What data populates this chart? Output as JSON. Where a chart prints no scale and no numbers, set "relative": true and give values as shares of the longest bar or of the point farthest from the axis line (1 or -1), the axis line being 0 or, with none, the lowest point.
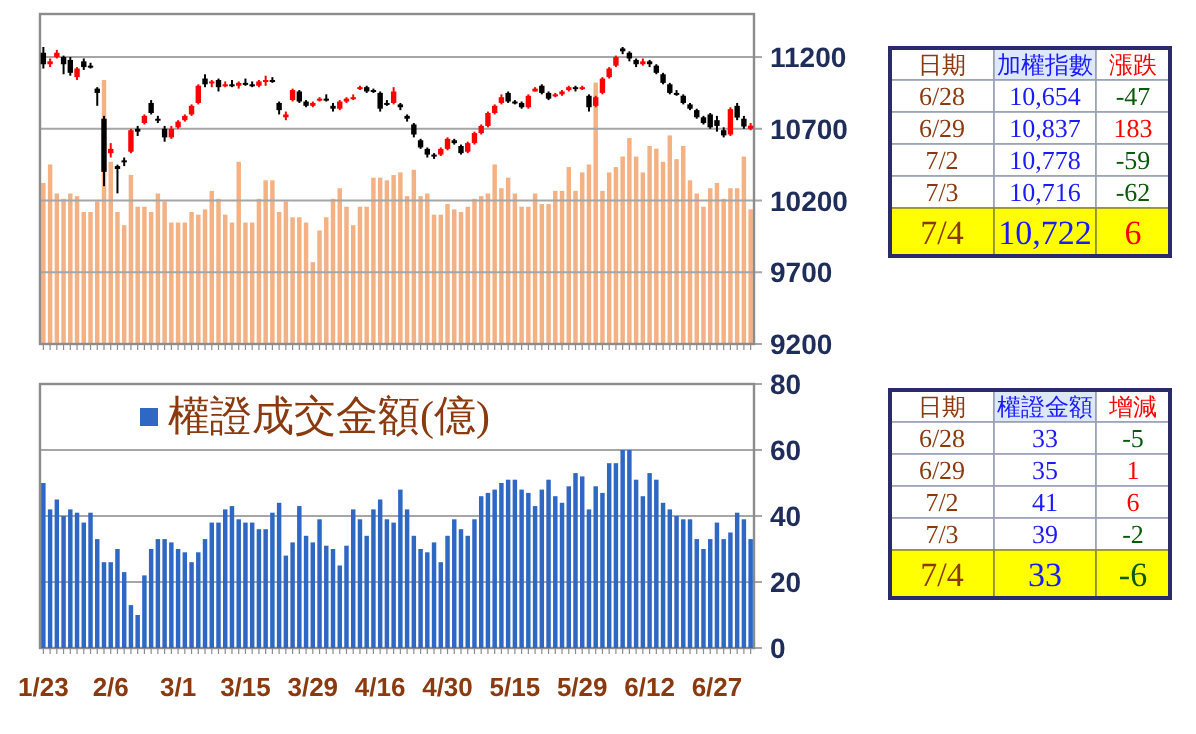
{
  "chart_data": [
    {
      "type": "candlestick",
      "tick_labels": "y",
      "grid": "y",
      "ylim": [
        9200,
        11500
      ],
      "yticks": [
        9200,
        9700,
        10200,
        10700,
        11200
      ],
      "categories": [
        null,
        null,
        null,
        null,
        null,
        null,
        null,
        null,
        null,
        null,
        null,
        null,
        null,
        null,
        null,
        null,
        null,
        null,
        null,
        null,
        null,
        null,
        null,
        null,
        null,
        null,
        null,
        null,
        null,
        null,
        null,
        null,
        null,
        null,
        null,
        null,
        null,
        null,
        null,
        null,
        null,
        null,
        null,
        null,
        null,
        null,
        null,
        null,
        null,
        null,
        null,
        null,
        null,
        null,
        null,
        null,
        null,
        null,
        null,
        null,
        null,
        null,
        null,
        null,
        null,
        null,
        null,
        null,
        null,
        null,
        null,
        null,
        null,
        null,
        null,
        null,
        null,
        null,
        null,
        null,
        null,
        null,
        null,
        null,
        null,
        null,
        null,
        null,
        null,
        null,
        null,
        null,
        null,
        null,
        null,
        null,
        null,
        null,
        null,
        null,
        null,
        null,
        null,
        null,
        null,
        null
      ],
      "ohlc": [
        [
          11230,
          11270,
          11120,
          11150
        ],
        [
          11150,
          11190,
          11130,
          11170
        ],
        [
          11200,
          11250,
          11190,
          11230
        ],
        [
          11200,
          11210,
          11080,
          11150
        ],
        [
          11180,
          11200,
          11070,
          11090
        ],
        [
          11060,
          11130,
          11040,
          11120
        ],
        [
          11170,
          11190,
          11110,
          11130
        ],
        [
          11140,
          11160,
          11120,
          11130
        ],
        [
          10980,
          10990,
          10860,
          10950
        ],
        [
          10770,
          10790,
          10300,
          10400
        ],
        [
          10530,
          10600,
          10500,
          10560
        ],
        [
          10440,
          10450,
          10250,
          10420
        ],
        [
          10480,
          10500,
          10440,
          10470
        ],
        [
          10540,
          10700,
          10530,
          10690
        ],
        [
          10700,
          10720,
          10650,
          10680
        ],
        [
          10740,
          10800,
          10730,
          10790
        ],
        [
          10880,
          10900,
          10800,
          10810
        ],
        [
          10770,
          10790,
          10740,
          10760
        ],
        [
          10700,
          10720,
          10610,
          10640
        ],
        [
          10640,
          10720,
          10630,
          10700
        ],
        [
          10710,
          10760,
          10700,
          10750
        ],
        [
          10760,
          10800,
          10750,
          10790
        ],
        [
          10800,
          10870,
          10790,
          10860
        ],
        [
          10880,
          11010,
          10870,
          11000
        ],
        [
          11050,
          11080,
          10990,
          11010
        ],
        [
          11020,
          11040,
          10990,
          11030
        ],
        [
          11040,
          11050,
          10960,
          10990
        ],
        [
          11000,
          11030,
          10990,
          11010
        ],
        [
          11010,
          11040,
          10990,
          11000
        ],
        [
          11000,
          11030,
          10980,
          11020
        ],
        [
          11020,
          11050,
          11000,
          11010
        ],
        [
          11010,
          11030,
          10990,
          11000
        ],
        [
          11000,
          11040,
          10990,
          11030
        ],
        [
          11030,
          11070,
          11000,
          11040
        ],
        [
          11040,
          11060,
          11020,
          11030
        ],
        [
          10880,
          10890,
          10800,
          10830
        ],
        [
          10780,
          10820,
          10760,
          10800
        ],
        [
          10900,
          10980,
          10890,
          10970
        ],
        [
          10960,
          10970,
          10880,
          10890
        ],
        [
          10890,
          10900,
          10850,
          10860
        ],
        [
          10860,
          10890,
          10850,
          10880
        ],
        [
          10900,
          10920,
          10890,
          10910
        ],
        [
          10910,
          10940,
          10890,
          10900
        ],
        [
          10860,
          10880,
          10820,
          10840
        ],
        [
          10840,
          10900,
          10830,
          10890
        ],
        [
          10890,
          10920,
          10880,
          10910
        ],
        [
          10910,
          10940,
          10900,
          10920
        ],
        [
          10980,
          11000,
          10970,
          10990
        ],
        [
          10990,
          11000,
          10950,
          10960
        ],
        [
          10970,
          10980,
          10950,
          10960
        ],
        [
          10950,
          10960,
          10820,
          10840
        ],
        [
          10880,
          10900,
          10860,
          10870
        ],
        [
          10880,
          10990,
          10870,
          10960
        ],
        [
          10870,
          10880,
          10830,
          10850
        ],
        [
          10790,
          10800,
          10750,
          10770
        ],
        [
          10730,
          10740,
          10640,
          10660
        ],
        [
          10620,
          10630,
          10560,
          10570
        ],
        [
          10560,
          10570,
          10500,
          10520
        ],
        [
          10520,
          10530,
          10490,
          10510
        ],
        [
          10520,
          10570,
          10510,
          10560
        ],
        [
          10560,
          10640,
          10550,
          10630
        ],
        [
          10620,
          10630,
          10590,
          10600
        ],
        [
          10580,
          10590,
          10520,
          10530
        ],
        [
          10540,
          10610,
          10530,
          10600
        ],
        [
          10600,
          10680,
          10590,
          10670
        ],
        [
          10670,
          10730,
          10660,
          10720
        ],
        [
          10720,
          10820,
          10710,
          10810
        ],
        [
          10810,
          10870,
          10800,
          10860
        ],
        [
          10880,
          10940,
          10870,
          10920
        ],
        [
          10950,
          10960,
          10880,
          10890
        ],
        [
          10890,
          10900,
          10870,
          10880
        ],
        [
          10880,
          10890,
          10840,
          10850
        ],
        [
          10850,
          10940,
          10840,
          10930
        ],
        [
          10960,
          10990,
          10960,
          10980
        ],
        [
          11000,
          11010,
          10940,
          10950
        ],
        [
          10950,
          10960,
          10900,
          10910
        ],
        [
          10930,
          10950,
          10920,
          10940
        ],
        [
          10940,
          10970,
          10930,
          10960
        ],
        [
          10970,
          11000,
          10960,
          10990
        ],
        [
          10990,
          11000,
          10960,
          10980
        ],
        [
          10980,
          11000,
          10970,
          10990
        ],
        [
          10930,
          10940,
          10820,
          10850
        ],
        [
          10860,
          10930,
          10850,
          10920
        ],
        [
          10950,
          11060,
          10940,
          11050
        ],
        [
          11060,
          11130,
          11050,
          11120
        ],
        [
          11140,
          11210,
          11130,
          11200
        ],
        [
          11260,
          11270,
          11220,
          11240
        ],
        [
          11230,
          11240,
          11170,
          11190
        ],
        [
          11180,
          11190,
          11130,
          11150
        ],
        [
          11150,
          11190,
          11140,
          11170
        ],
        [
          11170,
          11180,
          11130,
          11150
        ],
        [
          11140,
          11150,
          11080,
          11090
        ],
        [
          11080,
          11090,
          11010,
          11020
        ],
        [
          11010,
          11020,
          10940,
          10950
        ],
        [
          10950,
          10970,
          10930,
          10940
        ],
        [
          10930,
          10940,
          10870,
          10880
        ],
        [
          10870,
          10880,
          10830,
          10840
        ],
        [
          10830,
          10840,
          10770,
          10780
        ],
        [
          10780,
          10790,
          10730,
          10740
        ],
        [
          10800,
          10810,
          10700,
          10710
        ],
        [
          10760,
          10790,
          10680,
          10720
        ],
        [
          10690,
          10710,
          10640,
          10654
        ],
        [
          10660,
          10850,
          10650,
          10837
        ],
        [
          10860,
          10880,
          10760,
          10778
        ],
        [
          10770,
          10790,
          10700,
          10716
        ],
        [
          10700,
          10740,
          10690,
          10722
        ]
      ]
    },
    {
      "type": "bar",
      "relative": true,
      "color": "#f4b183",
      "categories": [
        null,
        null,
        null,
        null,
        null,
        null,
        null,
        null,
        null,
        null,
        null,
        null,
        null,
        null,
        null,
        null,
        null,
        null,
        null,
        null,
        null,
        null,
        null,
        null,
        null,
        null,
        null,
        null,
        null,
        null,
        null,
        null,
        null,
        null,
        null,
        null,
        null,
        null,
        null,
        null,
        null,
        null,
        null,
        null,
        null,
        null,
        null,
        null,
        null,
        null,
        null,
        null,
        null,
        null,
        null,
        null,
        null,
        null,
        null,
        null,
        null,
        null,
        null,
        null,
        null,
        null,
        null,
        null,
        null,
        null,
        null,
        null,
        null,
        null,
        null,
        null,
        null,
        null,
        null,
        null,
        null,
        null,
        null,
        null,
        null,
        null,
        null,
        null,
        null,
        null,
        null,
        null,
        null,
        null,
        null,
        null,
        null,
        null,
        null,
        null,
        null,
        null,
        null,
        null,
        null,
        null
      ],
      "values": [
        0.61,
        0.68,
        0.57,
        0.55,
        0.57,
        0.56,
        0.5,
        0.5,
        0.54,
        1,
        0.69,
        0.5,
        0.45,
        0.64,
        0.52,
        0.52,
        0.5,
        0.57,
        0.54,
        0.46,
        0.46,
        0.46,
        0.5,
        0.49,
        0.51,
        0.58,
        0.55,
        0.49,
        0.46,
        0.69,
        0.46,
        0.46,
        0.55,
        0.62,
        0.62,
        0.5,
        0.54,
        0.48,
        0.48,
        0.46,
        0.31,
        0.43,
        0.48,
        0.55,
        0.59,
        0.52,
        0.45,
        0.52,
        0.52,
        0.63,
        0.63,
        0.62,
        0.64,
        0.65,
        0.56,
        0.66,
        0.56,
        0.57,
        0.49,
        0.49,
        0.53,
        0.51,
        0.5,
        0.52,
        0.55,
        0.56,
        0.57,
        0.68,
        0.59,
        0.63,
        0.57,
        0.52,
        0.52,
        0.57,
        0.53,
        0.53,
        0.58,
        0.58,
        0.67,
        0.58,
        0.65,
        0.68,
        0.99,
        0.58,
        0.65,
        0.67,
        0.71,
        0.78,
        0.71,
        0.65,
        0.75,
        0.74,
        0.69,
        0.79,
        0.7,
        0.75,
        0.62,
        0.57,
        0.52,
        0.59,
        0.61,
        0.55,
        0.59,
        0.59,
        0.71,
        0.51
      ]
    },
    {
      "type": "bar",
      "grid": "y",
      "legend": "top",
      "ylim": [
        0,
        80
      ],
      "yticks": [
        0,
        20,
        40,
        60,
        80
      ],
      "categories": [
        "1/23",
        null,
        null,
        null,
        null,
        null,
        null,
        null,
        null,
        null,
        "2/6",
        null,
        null,
        null,
        null,
        null,
        null,
        null,
        null,
        null,
        "3/1",
        null,
        null,
        null,
        null,
        null,
        null,
        null,
        null,
        null,
        "3/15",
        null,
        null,
        null,
        null,
        null,
        null,
        null,
        null,
        null,
        "3/29",
        null,
        null,
        null,
        null,
        null,
        null,
        null,
        null,
        null,
        "4/16",
        null,
        null,
        null,
        null,
        null,
        null,
        null,
        null,
        null,
        "4/30",
        null,
        null,
        null,
        null,
        null,
        null,
        null,
        null,
        null,
        "5/15",
        null,
        null,
        null,
        null,
        null,
        null,
        null,
        null,
        null,
        "5/29",
        null,
        null,
        null,
        null,
        null,
        null,
        null,
        null,
        null,
        "6/12",
        null,
        null,
        null,
        null,
        null,
        null,
        null,
        null,
        null,
        "6/27",
        null,
        null,
        null,
        null,
        null
      ],
      "series": [
        {
          "name": "權證成交金額(億)",
          "color": "#2e67c4",
          "values": [
            50,
            42,
            45,
            40,
            42,
            41,
            38,
            41,
            33,
            26,
            26,
            30,
            23,
            13,
            10,
            22,
            30,
            33,
            33,
            32,
            30,
            29,
            26,
            29,
            33,
            38,
            38,
            42,
            43,
            39,
            38,
            38,
            36,
            36,
            41,
            44,
            28,
            32,
            43,
            34,
            32,
            39,
            31,
            30,
            25,
            31,
            42,
            39,
            34,
            42,
            45,
            39,
            38,
            48,
            42,
            34,
            30,
            29,
            32,
            26,
            34,
            39,
            36,
            34,
            39,
            46,
            47,
            48,
            50,
            51,
            51,
            48,
            47,
            43,
            48,
            51,
            46,
            44,
            49,
            53,
            52,
            42,
            49,
            47,
            56,
            56,
            60,
            60,
            51,
            46,
            53,
            51,
            44,
            42,
            40,
            39,
            39,
            33,
            30,
            33,
            38,
            33,
            35,
            41,
            39,
            33
          ]
        }
      ]
    },
    {
      "type": "other",
      "categories": [
        "日期",
        "加權指數",
        "漲跌"
      ],
      "cell_labels": [
        [
          "6/28",
          "10,654",
          "-47"
        ],
        [
          "6/29",
          "10,837",
          "183"
        ],
        [
          "7/2",
          "10,778",
          "-59"
        ],
        [
          "7/3",
          "10,716",
          "-62"
        ],
        [
          "7/4",
          "10,722",
          "6"
        ]
      ]
    },
    {
      "type": "other",
      "categories": [
        "日期",
        "權證金額",
        "增減"
      ],
      "cell_labels": [
        [
          "6/28",
          "33",
          "-5"
        ],
        [
          "6/29",
          "35",
          "1"
        ],
        [
          "7/2",
          "41",
          "6"
        ],
        [
          "7/3",
          "39",
          "-2"
        ],
        [
          "7/4",
          "33",
          "-6"
        ]
      ]
    }
  ]
}
